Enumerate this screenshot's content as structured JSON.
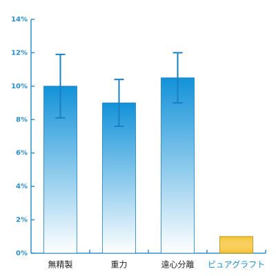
{
  "chart_data": {
    "type": "bar",
    "categories": [
      "無精製",
      "重力",
      "遠心分離",
      "ピュアグラフト"
    ],
    "values": [
      10,
      9,
      10.5,
      1
    ],
    "errors": [
      1.9,
      1.4,
      1.5,
      null
    ],
    "colors": [
      "#1392d8",
      "#1392d8",
      "#1392d8",
      "#f6c02a"
    ],
    "label_colors": [
      "#222222",
      "#222222",
      "#222222",
      "#1a8fd0"
    ],
    "axis_color": "#2a8fcf",
    "ylim": [
      0,
      14
    ],
    "yticks": [
      {
        "value": 0,
        "label": "0%"
      },
      {
        "value": 2,
        "label": "2%"
      },
      {
        "value": 4,
        "label": "4%"
      },
      {
        "value": 6,
        "label": "6%"
      },
      {
        "value": 8,
        "label": "8%"
      },
      {
        "value": 10,
        "label": "10%"
      },
      {
        "value": 12,
        "label": "12%"
      },
      {
        "value": 14,
        "label": "14%"
      }
    ]
  }
}
